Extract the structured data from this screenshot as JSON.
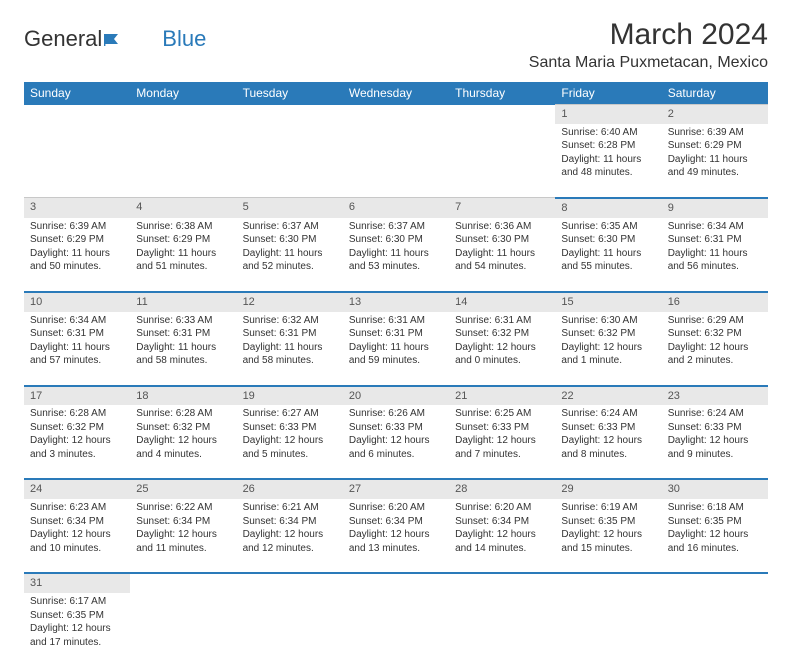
{
  "logo": {
    "part1": "General",
    "part2": "Blue"
  },
  "header": {
    "month_title": "March 2024",
    "location": "Santa Maria Puxmetacan, Mexico"
  },
  "colors": {
    "header_bg": "#2a7ab9",
    "header_text": "#ffffff",
    "daynum_bg": "#e8e8e8",
    "row_border": "#2a7ab9",
    "text": "#333333"
  },
  "day_headers": [
    "Sunday",
    "Monday",
    "Tuesday",
    "Wednesday",
    "Thursday",
    "Friday",
    "Saturday"
  ],
  "weeks": [
    [
      null,
      null,
      null,
      null,
      null,
      {
        "n": "1",
        "sr": "Sunrise: 6:40 AM",
        "ss": "Sunset: 6:28 PM",
        "dl": "Daylight: 11 hours and 48 minutes."
      },
      {
        "n": "2",
        "sr": "Sunrise: 6:39 AM",
        "ss": "Sunset: 6:29 PM",
        "dl": "Daylight: 11 hours and 49 minutes."
      }
    ],
    [
      {
        "n": "3",
        "sr": "Sunrise: 6:39 AM",
        "ss": "Sunset: 6:29 PM",
        "dl": "Daylight: 11 hours and 50 minutes."
      },
      {
        "n": "4",
        "sr": "Sunrise: 6:38 AM",
        "ss": "Sunset: 6:29 PM",
        "dl": "Daylight: 11 hours and 51 minutes."
      },
      {
        "n": "5",
        "sr": "Sunrise: 6:37 AM",
        "ss": "Sunset: 6:30 PM",
        "dl": "Daylight: 11 hours and 52 minutes."
      },
      {
        "n": "6",
        "sr": "Sunrise: 6:37 AM",
        "ss": "Sunset: 6:30 PM",
        "dl": "Daylight: 11 hours and 53 minutes."
      },
      {
        "n": "7",
        "sr": "Sunrise: 6:36 AM",
        "ss": "Sunset: 6:30 PM",
        "dl": "Daylight: 11 hours and 54 minutes."
      },
      {
        "n": "8",
        "sr": "Sunrise: 6:35 AM",
        "ss": "Sunset: 6:30 PM",
        "dl": "Daylight: 11 hours and 55 minutes."
      },
      {
        "n": "9",
        "sr": "Sunrise: 6:34 AM",
        "ss": "Sunset: 6:31 PM",
        "dl": "Daylight: 11 hours and 56 minutes."
      }
    ],
    [
      {
        "n": "10",
        "sr": "Sunrise: 6:34 AM",
        "ss": "Sunset: 6:31 PM",
        "dl": "Daylight: 11 hours and 57 minutes."
      },
      {
        "n": "11",
        "sr": "Sunrise: 6:33 AM",
        "ss": "Sunset: 6:31 PM",
        "dl": "Daylight: 11 hours and 58 minutes."
      },
      {
        "n": "12",
        "sr": "Sunrise: 6:32 AM",
        "ss": "Sunset: 6:31 PM",
        "dl": "Daylight: 11 hours and 58 minutes."
      },
      {
        "n": "13",
        "sr": "Sunrise: 6:31 AM",
        "ss": "Sunset: 6:31 PM",
        "dl": "Daylight: 11 hours and 59 minutes."
      },
      {
        "n": "14",
        "sr": "Sunrise: 6:31 AM",
        "ss": "Sunset: 6:32 PM",
        "dl": "Daylight: 12 hours and 0 minutes."
      },
      {
        "n": "15",
        "sr": "Sunrise: 6:30 AM",
        "ss": "Sunset: 6:32 PM",
        "dl": "Daylight: 12 hours and 1 minute."
      },
      {
        "n": "16",
        "sr": "Sunrise: 6:29 AM",
        "ss": "Sunset: 6:32 PM",
        "dl": "Daylight: 12 hours and 2 minutes."
      }
    ],
    [
      {
        "n": "17",
        "sr": "Sunrise: 6:28 AM",
        "ss": "Sunset: 6:32 PM",
        "dl": "Daylight: 12 hours and 3 minutes."
      },
      {
        "n": "18",
        "sr": "Sunrise: 6:28 AM",
        "ss": "Sunset: 6:32 PM",
        "dl": "Daylight: 12 hours and 4 minutes."
      },
      {
        "n": "19",
        "sr": "Sunrise: 6:27 AM",
        "ss": "Sunset: 6:33 PM",
        "dl": "Daylight: 12 hours and 5 minutes."
      },
      {
        "n": "20",
        "sr": "Sunrise: 6:26 AM",
        "ss": "Sunset: 6:33 PM",
        "dl": "Daylight: 12 hours and 6 minutes."
      },
      {
        "n": "21",
        "sr": "Sunrise: 6:25 AM",
        "ss": "Sunset: 6:33 PM",
        "dl": "Daylight: 12 hours and 7 minutes."
      },
      {
        "n": "22",
        "sr": "Sunrise: 6:24 AM",
        "ss": "Sunset: 6:33 PM",
        "dl": "Daylight: 12 hours and 8 minutes."
      },
      {
        "n": "23",
        "sr": "Sunrise: 6:24 AM",
        "ss": "Sunset: 6:33 PM",
        "dl": "Daylight: 12 hours and 9 minutes."
      }
    ],
    [
      {
        "n": "24",
        "sr": "Sunrise: 6:23 AM",
        "ss": "Sunset: 6:34 PM",
        "dl": "Daylight: 12 hours and 10 minutes."
      },
      {
        "n": "25",
        "sr": "Sunrise: 6:22 AM",
        "ss": "Sunset: 6:34 PM",
        "dl": "Daylight: 12 hours and 11 minutes."
      },
      {
        "n": "26",
        "sr": "Sunrise: 6:21 AM",
        "ss": "Sunset: 6:34 PM",
        "dl": "Daylight: 12 hours and 12 minutes."
      },
      {
        "n": "27",
        "sr": "Sunrise: 6:20 AM",
        "ss": "Sunset: 6:34 PM",
        "dl": "Daylight: 12 hours and 13 minutes."
      },
      {
        "n": "28",
        "sr": "Sunrise: 6:20 AM",
        "ss": "Sunset: 6:34 PM",
        "dl": "Daylight: 12 hours and 14 minutes."
      },
      {
        "n": "29",
        "sr": "Sunrise: 6:19 AM",
        "ss": "Sunset: 6:35 PM",
        "dl": "Daylight: 12 hours and 15 minutes."
      },
      {
        "n": "30",
        "sr": "Sunrise: 6:18 AM",
        "ss": "Sunset: 6:35 PM",
        "dl": "Daylight: 12 hours and 16 minutes."
      }
    ],
    [
      {
        "n": "31",
        "sr": "Sunrise: 6:17 AM",
        "ss": "Sunset: 6:35 PM",
        "dl": "Daylight: 12 hours and 17 minutes."
      },
      null,
      null,
      null,
      null,
      null,
      null
    ]
  ]
}
